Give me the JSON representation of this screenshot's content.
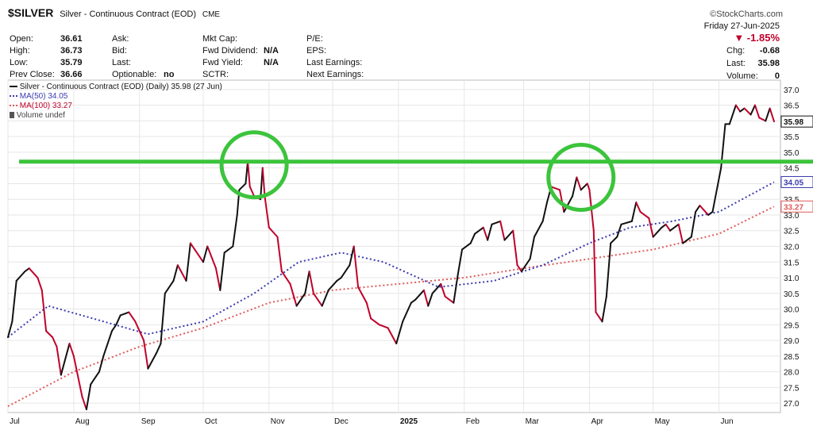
{
  "header": {
    "symbol": "$SILVER",
    "name": "Silver - Continuous Contract (EOD)",
    "exchange": "CME",
    "brand": "©StockCharts.com",
    "date_line": "Friday  27-Jun-2025"
  },
  "stats": {
    "col1": [
      {
        "label": "Open:",
        "value": "36.61"
      },
      {
        "label": "High:",
        "value": "36.73"
      },
      {
        "label": "Low:",
        "value": "35.79"
      },
      {
        "label": "Prev Close:",
        "value": "36.66"
      }
    ],
    "col2": [
      {
        "label": "Ask:",
        "value": ""
      },
      {
        "label": "Bid:",
        "value": ""
      },
      {
        "label": "Last:",
        "value": ""
      },
      {
        "label": "Optionable:",
        "value": "no"
      }
    ],
    "col3": [
      {
        "label": "Mkt Cap:",
        "value": ""
      },
      {
        "label": "Fwd Dividend:",
        "value": "N/A"
      },
      {
        "label": "Fwd Yield:",
        "value": "N/A"
      },
      {
        "label": "SCTR:",
        "value": ""
      }
    ],
    "col4": [
      {
        "label": "P/E:",
        "value": ""
      },
      {
        "label": "EPS:",
        "value": ""
      },
      {
        "label": "Last Earnings:",
        "value": ""
      },
      {
        "label": "Next Earnings:",
        "value": ""
      }
    ],
    "right": {
      "pct_change": "▼ -1.85%",
      "chg_label": "Chg:",
      "chg_value": "-0.68",
      "last_label": "Last:",
      "last_value": "35.98",
      "vol_label": "Volume:",
      "vol_value": "0"
    }
  },
  "legend": {
    "price": "Silver - Continuous Contract (EOD) (Daily) 35.98 (27 Jun)",
    "ma50": "MA(50) 34.05",
    "ma100": "MA(100) 33.27",
    "volume": "Volume undef"
  },
  "colors": {
    "up": "#111111",
    "down": "#c0002b",
    "ma50": "#3a3ab0",
    "ma100": "#e05a5a",
    "annot": "#3cc43c",
    "grid": "#e6e6e6"
  },
  "chart_data": {
    "type": "line",
    "title": "Silver - Continuous Contract (EOD) (Daily)",
    "x_labels": [
      "Jul",
      "Aug",
      "Sep",
      "Oct",
      "Nov",
      "Dec",
      "2025",
      "Feb",
      "Mar",
      "Apr",
      "May",
      "Jun"
    ],
    "y_ticks": [
      "27.0",
      "27.5",
      "28.0",
      "28.5",
      "29.0",
      "29.5",
      "30.0",
      "30.5",
      "31.0",
      "31.5",
      "32.0",
      "32.5",
      "33.0",
      "33.5",
      "34.0",
      "34.5",
      "35.0",
      "35.5",
      "36.0",
      "36.5",
      "37.0"
    ],
    "ylim": [
      26.7,
      37.3
    ],
    "resistance_level": 34.7,
    "last_value_label": "35.98",
    "ma50_label": "34.05",
    "ma100_label": "33.27",
    "price": [
      [
        "2024-07-01",
        29.1
      ],
      [
        "2024-07-03",
        29.6
      ],
      [
        "2024-07-05",
        30.9
      ],
      [
        "2024-07-09",
        31.2
      ],
      [
        "2024-07-11",
        31.3
      ],
      [
        "2024-07-15",
        31.0
      ],
      [
        "2024-07-17",
        30.6
      ],
      [
        "2024-07-19",
        29.3
      ],
      [
        "2024-07-22",
        29.1
      ],
      [
        "2024-07-24",
        28.8
      ],
      [
        "2024-07-26",
        27.9
      ],
      [
        "2024-07-30",
        28.9
      ],
      [
        "2024-08-01",
        28.5
      ],
      [
        "2024-08-05",
        27.2
      ],
      [
        "2024-08-07",
        26.8
      ],
      [
        "2024-08-09",
        27.6
      ],
      [
        "2024-08-13",
        28.0
      ],
      [
        "2024-08-15",
        28.5
      ],
      [
        "2024-08-19",
        29.3
      ],
      [
        "2024-08-21",
        29.5
      ],
      [
        "2024-08-23",
        29.8
      ],
      [
        "2024-08-27",
        29.9
      ],
      [
        "2024-08-30",
        29.6
      ],
      [
        "2024-09-03",
        29.0
      ],
      [
        "2024-09-05",
        28.1
      ],
      [
        "2024-09-09",
        28.6
      ],
      [
        "2024-09-11",
        28.9
      ],
      [
        "2024-09-13",
        30.5
      ],
      [
        "2024-09-17",
        30.9
      ],
      [
        "2024-09-19",
        31.4
      ],
      [
        "2024-09-23",
        30.9
      ],
      [
        "2024-09-25",
        32.1
      ],
      [
        "2024-09-27",
        31.9
      ],
      [
        "2024-10-01",
        31.5
      ],
      [
        "2024-10-03",
        32.0
      ],
      [
        "2024-10-07",
        31.3
      ],
      [
        "2024-10-09",
        30.6
      ],
      [
        "2024-10-11",
        31.8
      ],
      [
        "2024-10-15",
        32.0
      ],
      [
        "2024-10-17",
        33.0
      ],
      [
        "2024-10-18",
        33.8
      ],
      [
        "2024-10-21",
        34.0
      ],
      [
        "2024-10-22",
        34.7
      ],
      [
        "2024-10-23",
        33.9
      ],
      [
        "2024-10-25",
        33.6
      ],
      [
        "2024-10-28",
        33.5
      ],
      [
        "2024-10-29",
        34.5
      ],
      [
        "2024-10-30",
        33.6
      ],
      [
        "2024-11-01",
        32.6
      ],
      [
        "2024-11-05",
        32.3
      ],
      [
        "2024-11-07",
        31.2
      ],
      [
        "2024-11-11",
        30.8
      ],
      [
        "2024-11-14",
        30.1
      ],
      [
        "2024-11-18",
        30.5
      ],
      [
        "2024-11-20",
        31.2
      ],
      [
        "2024-11-22",
        30.5
      ],
      [
        "2024-11-26",
        30.1
      ],
      [
        "2024-11-29",
        30.6
      ],
      [
        "2024-12-03",
        30.9
      ],
      [
        "2024-12-05",
        31.0
      ],
      [
        "2024-12-09",
        31.4
      ],
      [
        "2024-12-11",
        32.0
      ],
      [
        "2024-12-13",
        30.7
      ],
      [
        "2024-12-17",
        30.2
      ],
      [
        "2024-12-19",
        29.7
      ],
      [
        "2024-12-23",
        29.5
      ],
      [
        "2024-12-27",
        29.4
      ],
      [
        "2024-12-31",
        28.9
      ],
      [
        "2025-01-03",
        29.6
      ],
      [
        "2025-01-07",
        30.2
      ],
      [
        "2025-01-09",
        30.3
      ],
      [
        "2025-01-13",
        30.6
      ],
      [
        "2025-01-15",
        30.1
      ],
      [
        "2025-01-17",
        30.5
      ],
      [
        "2025-01-21",
        30.8
      ],
      [
        "2025-01-23",
        30.4
      ],
      [
        "2025-01-27",
        30.2
      ],
      [
        "2025-01-29",
        31.1
      ],
      [
        "2025-01-31",
        31.9
      ],
      [
        "2025-02-04",
        32.1
      ],
      [
        "2025-02-06",
        32.4
      ],
      [
        "2025-02-10",
        32.6
      ],
      [
        "2025-02-12",
        32.2
      ],
      [
        "2025-02-14",
        32.7
      ],
      [
        "2025-02-18",
        32.8
      ],
      [
        "2025-02-20",
        32.2
      ],
      [
        "2025-02-24",
        32.5
      ],
      [
        "2025-02-26",
        31.4
      ],
      [
        "2025-02-28",
        31.2
      ],
      [
        "2025-03-04",
        31.6
      ],
      [
        "2025-03-06",
        32.3
      ],
      [
        "2025-03-10",
        32.8
      ],
      [
        "2025-03-12",
        33.4
      ],
      [
        "2025-03-14",
        33.9
      ],
      [
        "2025-03-18",
        33.8
      ],
      [
        "2025-03-20",
        33.1
      ],
      [
        "2025-03-24",
        33.6
      ],
      [
        "2025-03-26",
        34.2
      ],
      [
        "2025-03-28",
        33.8
      ],
      [
        "2025-03-31",
        34.0
      ],
      [
        "2025-04-01",
        33.8
      ],
      [
        "2025-04-03",
        32.5
      ],
      [
        "2025-04-04",
        29.9
      ],
      [
        "2025-04-07",
        29.6
      ],
      [
        "2025-04-09",
        30.4
      ],
      [
        "2025-04-11",
        32.1
      ],
      [
        "2025-04-14",
        32.3
      ],
      [
        "2025-04-16",
        32.7
      ],
      [
        "2025-04-21",
        32.8
      ],
      [
        "2025-04-23",
        33.4
      ],
      [
        "2025-04-25",
        33.1
      ],
      [
        "2025-04-29",
        32.9
      ],
      [
        "2025-05-01",
        32.3
      ],
      [
        "2025-05-05",
        32.6
      ],
      [
        "2025-05-07",
        32.7
      ],
      [
        "2025-05-09",
        32.5
      ],
      [
        "2025-05-13",
        32.7
      ],
      [
        "2025-05-15",
        32.1
      ],
      [
        "2025-05-19",
        32.3
      ],
      [
        "2025-05-21",
        33.1
      ],
      [
        "2025-05-23",
        33.3
      ],
      [
        "2025-05-27",
        33.0
      ],
      [
        "2025-05-29",
        33.1
      ],
      [
        "2025-06-02",
        34.5
      ],
      [
        "2025-06-04",
        35.9
      ],
      [
        "2025-06-06",
        35.9
      ],
      [
        "2025-06-09",
        36.5
      ],
      [
        "2025-06-11",
        36.3
      ],
      [
        "2025-06-13",
        36.4
      ],
      [
        "2025-06-16",
        36.2
      ],
      [
        "2025-06-18",
        36.5
      ],
      [
        "2025-06-20",
        36.1
      ],
      [
        "2025-06-23",
        36.0
      ],
      [
        "2025-06-25",
        36.4
      ],
      [
        "2025-06-27",
        35.98
      ]
    ],
    "ma50": [
      [
        "2024-07-01",
        29.1
      ],
      [
        "2024-07-20",
        30.1
      ],
      [
        "2024-08-10",
        29.7
      ],
      [
        "2024-09-05",
        29.2
      ],
      [
        "2024-10-01",
        29.6
      ],
      [
        "2024-10-25",
        30.5
      ],
      [
        "2024-11-15",
        31.5
      ],
      [
        "2024-12-05",
        31.8
      ],
      [
        "2024-12-25",
        31.5
      ],
      [
        "2025-01-20",
        30.7
      ],
      [
        "2025-02-15",
        30.9
      ],
      [
        "2025-03-10",
        31.4
      ],
      [
        "2025-04-01",
        32.1
      ],
      [
        "2025-04-20",
        32.6
      ],
      [
        "2025-05-10",
        32.8
      ],
      [
        "2025-06-01",
        33.1
      ],
      [
        "2025-06-27",
        34.05
      ]
    ],
    "ma100": [
      [
        "2024-07-01",
        26.9
      ],
      [
        "2024-08-01",
        28.0
      ],
      [
        "2024-09-01",
        28.8
      ],
      [
        "2024-10-01",
        29.4
      ],
      [
        "2024-11-01",
        30.2
      ],
      [
        "2024-12-01",
        30.6
      ],
      [
        "2025-01-01",
        30.8
      ],
      [
        "2025-02-01",
        31.0
      ],
      [
        "2025-03-01",
        31.3
      ],
      [
        "2025-04-01",
        31.6
      ],
      [
        "2025-05-01",
        31.9
      ],
      [
        "2025-06-01",
        32.4
      ],
      [
        "2025-06-27",
        33.27
      ]
    ],
    "annotations": [
      {
        "type": "circle",
        "date": "2024-10-25",
        "value": 34.6
      },
      {
        "type": "circle",
        "date": "2025-03-28",
        "value": 34.2
      }
    ]
  }
}
